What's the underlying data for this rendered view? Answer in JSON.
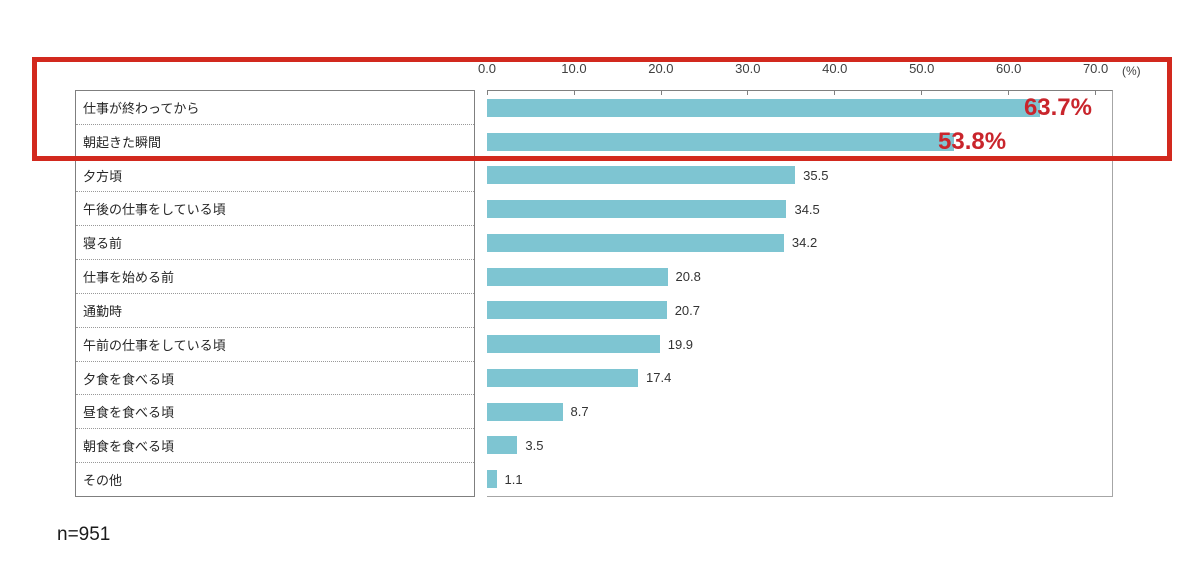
{
  "chart_data": {
    "type": "bar",
    "orientation": "horizontal",
    "title": "",
    "categories": [
      "仕事が終わってから",
      "朝起きた瞬間",
      "夕方頃",
      "午後の仕事をしている頃",
      "寝る前",
      "仕事を始める前",
      "通勤時",
      "午前の仕事をしている頃",
      "夕食を食べる頃",
      "昼食を食べる頃",
      "朝食を食べる頃",
      "その他"
    ],
    "values": [
      63.7,
      53.8,
      35.5,
      34.5,
      34.2,
      20.8,
      20.7,
      19.9,
      17.4,
      8.7,
      3.5,
      1.1
    ],
    "value_labels": [
      "63.7%",
      "53.8%",
      "35.5",
      "34.5",
      "34.2",
      "20.8",
      "20.7",
      "19.9",
      "17.4",
      "8.7",
      "3.5",
      "1.1"
    ],
    "highlighted_indices": [
      0,
      1
    ],
    "axis_ticks": [
      "0.0",
      "10.0",
      "20.0",
      "30.0",
      "40.0",
      "50.0",
      "60.0",
      "70.0"
    ],
    "axis_tick_values": [
      0,
      10,
      20,
      30,
      40,
      50,
      60,
      70
    ],
    "axis_unit": "(%)",
    "xlim": [
      0,
      72
    ],
    "grid": false,
    "legend": false,
    "sample_size_note": "n=951",
    "bar_color": "#7ec5d2",
    "highlight_text_color": "#c9252c",
    "highlight_box_color": "#d2291e"
  }
}
